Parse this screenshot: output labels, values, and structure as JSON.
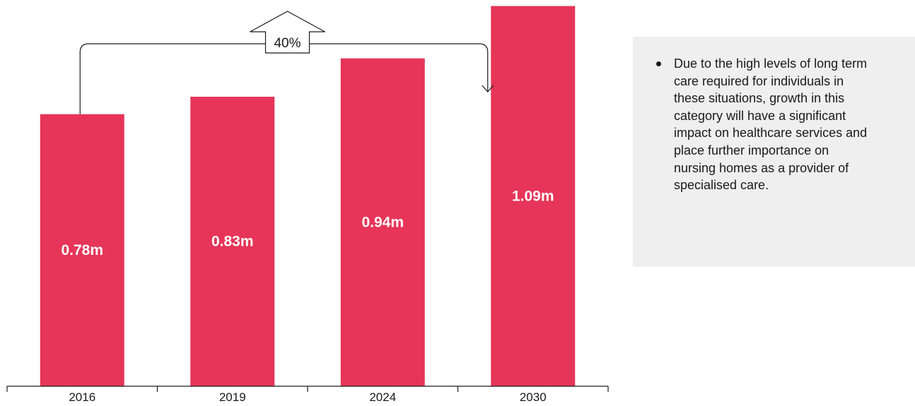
{
  "chart_data": {
    "type": "bar",
    "categories": [
      "2016",
      "2019",
      "2024",
      "2030"
    ],
    "values": [
      0.78,
      0.83,
      0.94,
      1.09
    ],
    "value_labels": [
      "0.78m",
      "0.83m",
      "0.94m",
      "1.09m"
    ],
    "title": "",
    "xlabel": "",
    "ylabel": "",
    "ylim": [
      0,
      1.2
    ],
    "grid": false,
    "bar_color": "#e63558",
    "annotation": {
      "type": "growth-arrow",
      "from": "2016",
      "to": "2030",
      "label": "40%"
    }
  },
  "note": {
    "bullets": [
      "Due to the high levels of long term care required for individuals in these situations, growth in this category will have a significant impact on healthcare services and place further importance on nursing homes as a provider of specialised care."
    ]
  }
}
